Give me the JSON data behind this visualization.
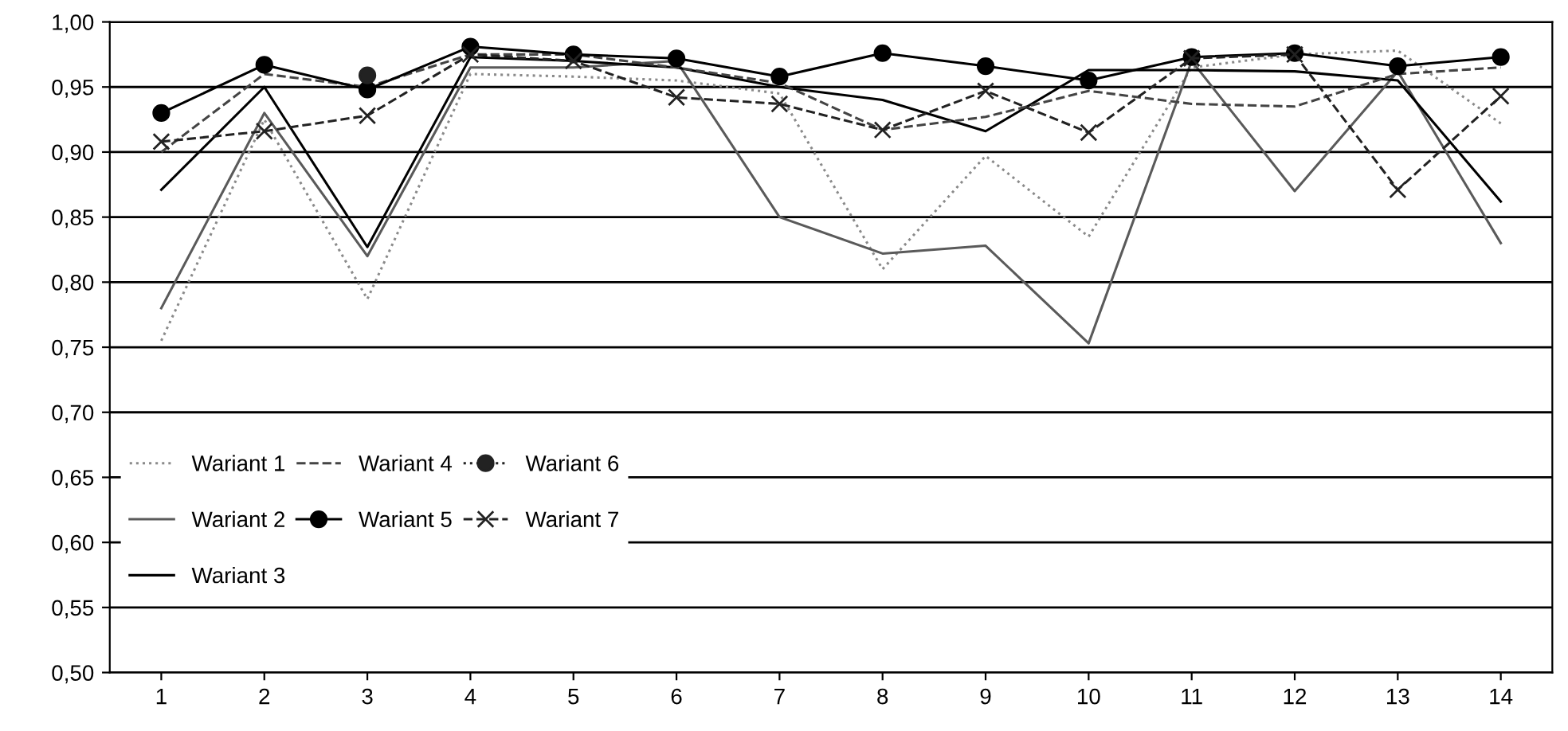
{
  "chart_data": {
    "type": "line",
    "categories": [
      "1",
      "2",
      "3",
      "4",
      "5",
      "6",
      "7",
      "8",
      "9",
      "10",
      "11",
      "12",
      "13",
      "14"
    ],
    "series": [
      {
        "name": "Wariant 1",
        "color": "#8a8a8a",
        "line_style": "dotted",
        "marker": "none",
        "values": [
          0.755,
          0.925,
          0.787,
          0.96,
          0.958,
          0.955,
          0.945,
          0.81,
          0.897,
          0.835,
          0.965,
          0.975,
          0.978,
          0.922
        ]
      },
      {
        "name": "Wariant 2",
        "color": "#5a5a5a",
        "line_style": "solid",
        "marker": "none",
        "values": [
          0.78,
          0.93,
          0.82,
          0.965,
          0.965,
          0.97,
          0.85,
          0.822,
          0.828,
          0.753,
          0.97,
          0.87,
          0.962,
          0.83
        ]
      },
      {
        "name": "Wariant 3",
        "color": "#000000",
        "line_style": "solid",
        "marker": "none",
        "values": [
          0.871,
          0.95,
          0.827,
          0.973,
          0.97,
          0.965,
          0.95,
          0.94,
          0.916,
          0.963,
          0.963,
          0.962,
          0.955,
          0.862
        ]
      },
      {
        "name": "Wariant 4",
        "color": "#444444",
        "line_style": "dashed",
        "marker": "none",
        "values": [
          0.9,
          0.96,
          0.95,
          0.975,
          0.975,
          0.965,
          0.953,
          0.917,
          0.927,
          0.947,
          0.937,
          0.935,
          0.96,
          0.965
        ]
      },
      {
        "name": "Wariant 5",
        "color": "#000000",
        "line_style": "solid",
        "marker": "circle",
        "values": [
          0.93,
          0.967,
          0.948,
          0.981,
          0.975,
          0.972,
          0.958,
          0.976,
          0.966,
          0.955,
          0.973,
          0.976,
          0.966,
          0.973
        ]
      },
      {
        "name": "Wariant 6",
        "color": "#222222",
        "line_style": "dotted",
        "marker": "circle",
        "values": [
          null,
          null,
          0.959,
          null,
          null,
          null,
          null,
          null,
          null,
          null,
          null,
          null,
          null,
          null
        ]
      },
      {
        "name": "Wariant 7",
        "color": "#222222",
        "line_style": "dashed",
        "marker": "cross",
        "values": [
          0.908,
          0.916,
          0.928,
          0.975,
          0.97,
          0.942,
          0.937,
          0.917,
          0.947,
          0.915,
          0.972,
          0.975,
          0.871,
          0.943
        ]
      }
    ],
    "ylim": [
      0.5,
      1.0
    ],
    "yticks": [
      {
        "value": 0.5,
        "label": "0,50"
      },
      {
        "value": 0.55,
        "label": "0,55"
      },
      {
        "value": 0.6,
        "label": "0,60"
      },
      {
        "value": 0.65,
        "label": "0,65"
      },
      {
        "value": 0.7,
        "label": "0,70"
      },
      {
        "value": 0.75,
        "label": "0,75"
      },
      {
        "value": 0.8,
        "label": "0,80"
      },
      {
        "value": 0.85,
        "label": "0,85"
      },
      {
        "value": 0.9,
        "label": "0,90"
      },
      {
        "value": 0.95,
        "label": "0,95"
      },
      {
        "value": 1.0,
        "label": "1,00"
      }
    ],
    "grid": "y",
    "legend": "bottom left"
  }
}
